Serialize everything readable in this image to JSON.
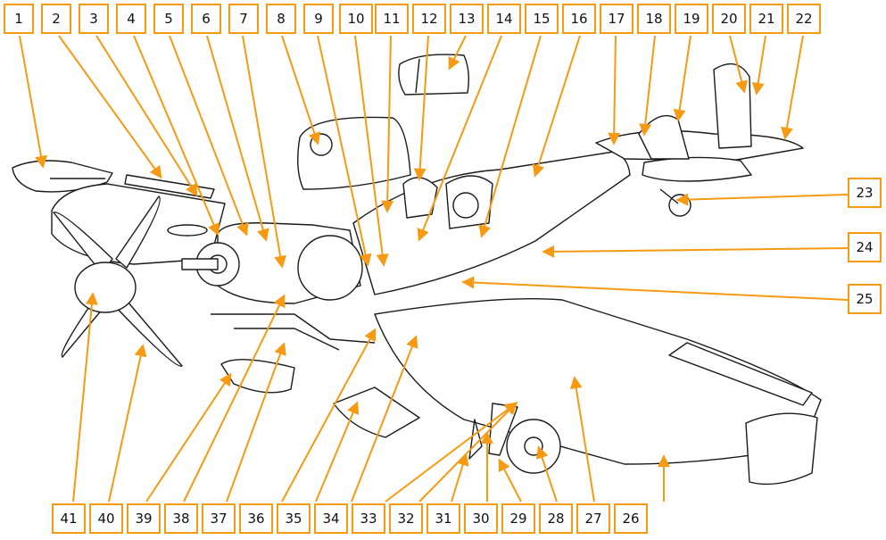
{
  "callout_color": "#f59a12",
  "line_color": "#1a1a1a",
  "top_callouts": [
    "1",
    "2",
    "3",
    "4",
    "5",
    "6",
    "7",
    "8",
    "9",
    "10",
    "11",
    "12",
    "13",
    "14",
    "15",
    "16",
    "17",
    "18",
    "19",
    "20",
    "21",
    "22"
  ],
  "right_callouts": [
    "23",
    "24",
    "25"
  ],
  "bottom_callouts": [
    "41",
    "40",
    "39",
    "38",
    "37",
    "36",
    "35",
    "34",
    "33",
    "32",
    "31",
    "30",
    "29",
    "28",
    "27",
    "26"
  ]
}
